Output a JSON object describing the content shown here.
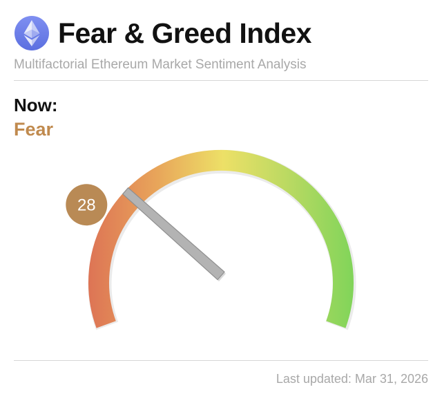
{
  "header": {
    "logo_icon": "ethereum-icon",
    "title": "Fear & Greed Index",
    "subtitle": "Multifactorial Ethereum Market Sentiment Analysis"
  },
  "status": {
    "now_label": "Now:",
    "sentiment": "Fear",
    "sentiment_color": "#c08a4e",
    "value": 28,
    "value_text": "28",
    "scale_min": 0,
    "scale_max": 100
  },
  "colors": {
    "extreme_fear": "#dd7455",
    "fear": "#e8a45a",
    "neutral": "#ede067",
    "greed": "#b8d962",
    "extreme_greed": "#7dd459",
    "needle": "#b3b3b3",
    "badge": "#b98a55"
  },
  "footer": {
    "last_updated": "Last updated: Mar 31, 2026"
  }
}
